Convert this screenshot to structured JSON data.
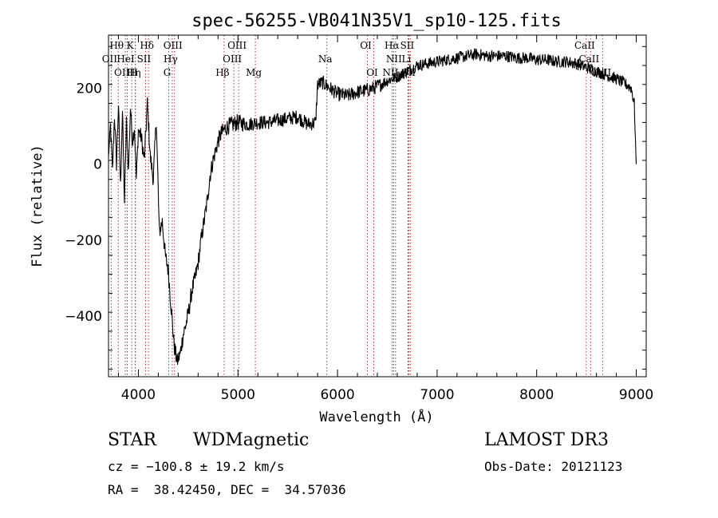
{
  "chart_data": {
    "type": "line",
    "title": "spec-56255-VB041N35V1_sp10-125.fits",
    "xlabel": "Wavelength (Å)",
    "ylabel": "Flux (relative)",
    "xlim": [
      3700,
      9100
    ],
    "ylim": [
      -560,
      340
    ],
    "xticks": [
      4000,
      5000,
      6000,
      7000,
      8000,
      9000
    ],
    "yticks": [
      -400,
      -200,
      0,
      200
    ],
    "grid": false,
    "series": [
      {
        "name": "spectrum",
        "x": [
          3700,
          3720,
          3740,
          3760,
          3780,
          3800,
          3820,
          3840,
          3860,
          3880,
          3900,
          3920,
          3940,
          3960,
          3980,
          4000,
          4030,
          4060,
          4090,
          4120,
          4150,
          4180,
          4210,
          4240,
          4270,
          4300,
          4330,
          4360,
          4390,
          4420,
          4450,
          4480,
          4510,
          4540,
          4570,
          4600,
          4630,
          4660,
          4690,
          4720,
          4750,
          4780,
          4800,
          4830,
          4860,
          4900,
          4950,
          5000,
          5100,
          5200,
          5300,
          5400,
          5500,
          5600,
          5700,
          5780,
          5800,
          5850,
          5900,
          6000,
          6100,
          6200,
          6300,
          6400,
          6500,
          6600,
          6700,
          6800,
          6900,
          7000,
          7100,
          7200,
          7300,
          7400,
          7500,
          7600,
          7700,
          7800,
          7900,
          8000,
          8100,
          8200,
          8300,
          8400,
          8500,
          8600,
          8700,
          8800,
          8900,
          8950,
          8980,
          9000
        ],
        "y": [
          20,
          100,
          -20,
          130,
          0,
          160,
          -60,
          140,
          -100,
          110,
          -20,
          150,
          60,
          100,
          -40,
          90,
          70,
          10,
          160,
          20,
          -40,
          120,
          -180,
          -150,
          -240,
          -280,
          -380,
          -480,
          -520,
          -500,
          -450,
          -420,
          -380,
          -330,
          -300,
          -260,
          -200,
          -150,
          -100,
          -30,
          10,
          40,
          60,
          80,
          90,
          100,
          105,
          110,
          105,
          110,
          110,
          115,
          120,
          125,
          105,
          110,
          210,
          215,
          205,
          185,
          180,
          190,
          195,
          205,
          220,
          230,
          245,
          260,
          265,
          270,
          275,
          280,
          285,
          290,
          285,
          285,
          285,
          280,
          280,
          275,
          275,
          270,
          270,
          265,
          255,
          245,
          235,
          225,
          210,
          200,
          160,
          0
        ],
        "sample_noise": [
          0,
          14,
          14,
          14,
          14,
          14,
          14,
          14,
          14,
          14,
          14,
          14,
          14,
          14,
          14,
          14,
          14,
          14,
          14,
          14,
          14,
          14,
          14,
          14,
          14,
          14,
          14,
          14,
          14,
          14,
          14,
          14,
          14,
          14,
          14,
          14,
          14,
          14,
          14,
          14,
          14,
          14,
          14,
          14,
          14,
          14,
          14,
          14,
          12,
          12,
          12,
          12,
          12,
          12,
          12,
          12,
          12,
          12,
          12,
          12,
          12,
          12,
          12,
          12,
          10,
          10,
          10,
          10,
          10,
          10,
          10,
          10,
          10,
          10,
          10,
          10,
          10,
          10,
          10,
          10,
          10,
          10,
          10,
          10,
          10,
          10,
          10,
          10,
          10,
          10,
          10,
          0
        ]
      }
    ],
    "line_markers": [
      {
        "name": "OII",
        "wavelength": 3727,
        "row": 1
      },
      {
        "name": "Hθ",
        "wavelength": 3798,
        "row": 0
      },
      {
        "name": "OIII",
        "wavelength": 3869,
        "row": 2
      },
      {
        "name": "HeI",
        "wavelength": 3889,
        "row": 1
      },
      {
        "name": "K",
        "wavelength": 3934,
        "row": 0
      },
      {
        "name": "Hη",
        "wavelength": 3970,
        "row": 2
      },
      {
        "name": "H",
        "wavelength": 3968,
        "row": 2
      },
      {
        "name": "SII",
        "wavelength": 4072,
        "row": 1
      },
      {
        "name": "Hδ",
        "wavelength": 4102,
        "row": 0
      },
      {
        "name": "OIII",
        "wavelength": 4363,
        "row": 0
      },
      {
        "name": "Hγ",
        "wavelength": 4340,
        "row": 1
      },
      {
        "name": "G",
        "wavelength": 4305,
        "row": 2
      },
      {
        "name": "Hβ",
        "wavelength": 4861,
        "row": 2
      },
      {
        "name": "OIII",
        "wavelength": 4959,
        "row": 1
      },
      {
        "name": "OIII",
        "wavelength": 5007,
        "row": 0
      },
      {
        "name": "Mg",
        "wavelength": 5175,
        "row": 2
      },
      {
        "name": "Na",
        "wavelength": 5893,
        "row": 1
      },
      {
        "name": "OI",
        "wavelength": 6300,
        "row": 0
      },
      {
        "name": "OI",
        "wavelength": 6364,
        "row": 2
      },
      {
        "name": "Hα",
        "wavelength": 6563,
        "row": 0
      },
      {
        "name": "NII",
        "wavelength": 6583,
        "row": 1
      },
      {
        "name": "NII",
        "wavelength": 6548,
        "row": 2
      },
      {
        "name": "SII",
        "wavelength": 6716,
        "row": 0
      },
      {
        "name": "Li",
        "wavelength": 6708,
        "row": 1
      },
      {
        "name": "SII",
        "wavelength": 6731,
        "row": 2
      },
      {
        "name": "CaII",
        "wavelength": 8498,
        "row": 0
      },
      {
        "name": "CaII",
        "wavelength": 8542,
        "row": 1
      },
      {
        "name": "CaII",
        "wavelength": 8662,
        "row": 2
      }
    ]
  },
  "info": {
    "class_label": "STAR",
    "subclass_label": "WDMagnetic",
    "survey": "LAMOST DR3",
    "cz": "cz = −100.8 ± 19.2 km/s",
    "obs_date": "Obs-Date: 20121123",
    "coords": "RA =  38.42450, DEC =  34.57036"
  },
  "colors": {
    "line": "#000000",
    "marker": "#b03030",
    "axis": "#000000"
  }
}
